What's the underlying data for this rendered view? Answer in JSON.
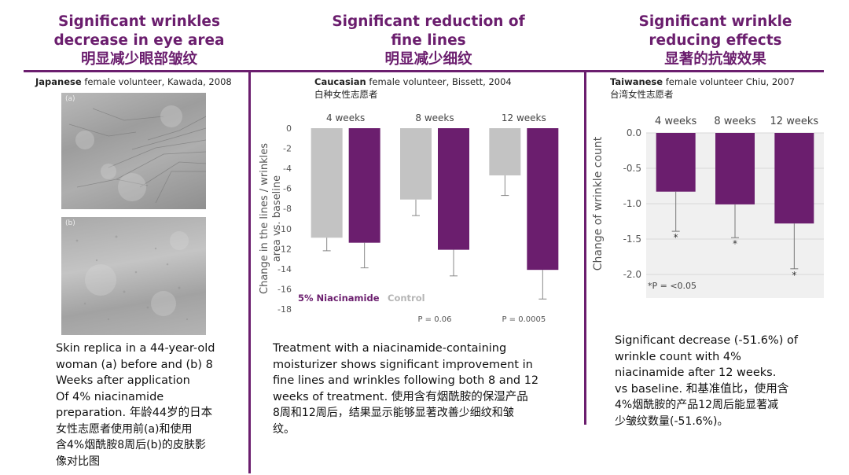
{
  "colors": {
    "purple": "#6b1e6e",
    "gray": "#c3c3c3",
    "bg_panel": "#f0f0f0"
  },
  "left": {
    "title": [
      "Significant wrinkles",
      "decrease in eye area",
      "明显减少眼部皱纹"
    ],
    "source_bold": "Japanese",
    "source_rest": " female volunteer, Kawada, 2008",
    "photo_a_label": "(a)",
    "photo_b_label": "(b)",
    "caption_lines": [
      "Skin replica in a 44-year-old",
      "woman (a) before and (b) 8",
      "Weeks after application",
      "Of 4% niacinamide",
      "preparation. 年龄44岁的日本",
      "女性志愿者使用前(a)和使用",
      "含4%烟酰胺8周后(b)的皮肤影",
      "像对比图"
    ]
  },
  "middle": {
    "title": [
      "Significant reduction of",
      "fine lines",
      "明显减少细纹"
    ],
    "source_bold": "Caucasian",
    "source_rest": " female volunteer, Bissett, 2004",
    "source_zh": "白种女性志愿者",
    "caption_lines": [
      "Treatment with a niacinamide-containing",
      "moisturizer shows significant improvement in",
      "fine lines and wrinkles following both 8 and 12",
      "weeks of treatment. 使用含有烟酰胺的保湿产品",
      "8周和12周后，结果显示能够显著改善少细纹和皱",
      "纹。"
    ]
  },
  "right": {
    "title": [
      "Significant wrinkle",
      "reducing effects",
      "显著的抗皱效果"
    ],
    "source_bold": "Taiwanese",
    "source_rest": " female volunteer Chiu, 2007",
    "source_zh": "台湾女性志愿者",
    "caption_lines": [
      "Significant decrease (-51.6%)  of",
      "wrinkle count with 4%",
      "niacinamide after 12 weeks.",
      "vs baseline. 和基准值比，使用含",
      "4%烟酰胺的产品12周后能显著减",
      "少皱纹数量(-51.6%)。"
    ]
  },
  "chart_data": [
    {
      "type": "bar",
      "categories": [
        "4 weeks",
        "8 weeks",
        "12 weeks"
      ],
      "series": [
        {
          "name": "Control",
          "values": [
            -10.9,
            -7.1,
            -4.7
          ],
          "errors": [
            1.3,
            1.6,
            2.0
          ]
        },
        {
          "name": "5% Niacinamide",
          "values": [
            -11.4,
            -12.1,
            -14.1
          ],
          "errors": [
            2.5,
            2.6,
            2.9
          ]
        }
      ],
      "ylabel": "Change in the lines / wrinkles area vs. baseline",
      "ylim": [
        -18,
        0
      ],
      "yticks": [
        0,
        -2,
        -4,
        -6,
        -8,
        -10,
        -12,
        -14,
        -16,
        -18
      ],
      "grid": false,
      "legend_position": "bottom-left",
      "annotations": [
        {
          "category": "8 weeks",
          "text": "P = 0.06"
        },
        {
          "category": "12 weeks",
          "text": "P = 0.0005"
        }
      ]
    },
    {
      "type": "bar",
      "categories": [
        "4 weeks",
        "8 weeks",
        "12 weeks"
      ],
      "series": [
        {
          "values": [
            -0.83,
            -1.01,
            -1.28
          ],
          "errors": [
            0.56,
            0.47,
            0.64
          ],
          "markers": [
            "*",
            "*",
            "*"
          ]
        }
      ],
      "ylabel": "Change of wrinkle count",
      "ylim": [
        -2.0,
        0.0
      ],
      "ytick_labels": [
        "0.0",
        "-0.5",
        "-1.0",
        "-1.5",
        "-2.0"
      ],
      "yticks": [
        0,
        -0.5,
        -1.0,
        -1.5,
        -2.0
      ],
      "grid": true,
      "footnote": "*P = <0.05"
    }
  ]
}
